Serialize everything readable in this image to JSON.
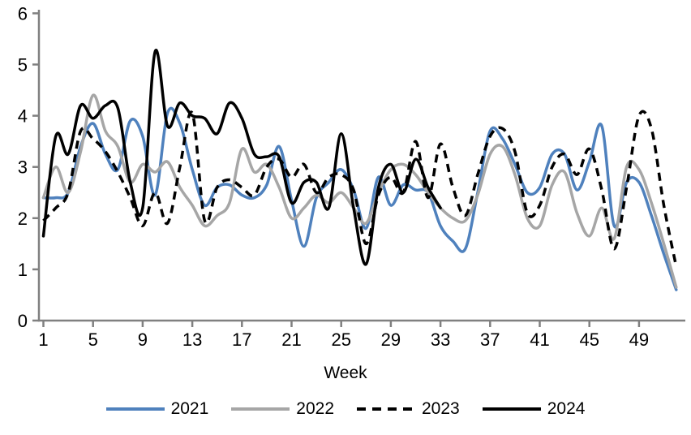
{
  "chart_data": {
    "type": "line",
    "title": "",
    "xlabel": "Week",
    "ylabel": "",
    "ylim": [
      0,
      6
    ],
    "grid": false,
    "legend_position": "bottom",
    "axis_color": "#808080",
    "text_color": "#000000",
    "background_color": "#FFFFFF",
    "categories": [
      1,
      2,
      3,
      4,
      5,
      6,
      7,
      8,
      9,
      10,
      11,
      12,
      13,
      14,
      15,
      16,
      17,
      18,
      19,
      20,
      21,
      22,
      23,
      24,
      25,
      26,
      27,
      28,
      29,
      30,
      31,
      32,
      33,
      34,
      35,
      36,
      37,
      38,
      39,
      40,
      41,
      42,
      43,
      44,
      45,
      46,
      47,
      48,
      49,
      50,
      51,
      52
    ],
    "x_tick_weeks": [
      1,
      5,
      9,
      13,
      17,
      21,
      25,
      29,
      33,
      37,
      41,
      45,
      49
    ],
    "x_tick_labels": [
      "1",
      "5",
      "9",
      "13",
      "17",
      "21",
      "25",
      "29",
      "33",
      "37",
      "41",
      "45",
      "49"
    ],
    "y_ticks": [
      0,
      1,
      2,
      3,
      4,
      5,
      6
    ],
    "y_tick_labels": [
      "0",
      "1",
      "2",
      "3",
      "4",
      "5",
      "6"
    ],
    "series": [
      {
        "name": "2021",
        "color": "#4F81BD",
        "style": "solid",
        "values": [
          2.4,
          2.4,
          2.5,
          3.4,
          3.85,
          3.25,
          2.95,
          3.9,
          3.6,
          2.45,
          4.05,
          3.85,
          2.95,
          2.25,
          2.6,
          2.65,
          2.45,
          2.4,
          2.65,
          3.4,
          2.35,
          1.45,
          2.4,
          2.7,
          2.95,
          2.55,
          1.8,
          2.8,
          2.25,
          2.65,
          2.55,
          2.5,
          1.85,
          1.55,
          1.4,
          2.5,
          3.7,
          3.55,
          3.05,
          2.5,
          2.6,
          3.25,
          3.25,
          2.55,
          3.1,
          3.8,
          1.85,
          2.7,
          2.7,
          2.05,
          1.3,
          0.6
        ]
      },
      {
        "name": "2022",
        "color": "#A6A6A6",
        "style": "solid",
        "values": [
          2.4,
          3.0,
          2.5,
          3.3,
          4.4,
          3.7,
          3.4,
          2.7,
          3.05,
          2.9,
          3.1,
          2.6,
          2.25,
          1.85,
          2.05,
          2.3,
          3.35,
          2.9,
          3.05,
          2.6,
          2.0,
          2.2,
          2.45,
          2.3,
          2.5,
          2.2,
          1.9,
          2.5,
          2.95,
          3.05,
          2.85,
          2.5,
          2.2,
          2.0,
          1.95,
          2.45,
          3.25,
          3.4,
          2.85,
          2.0,
          1.85,
          2.65,
          2.9,
          2.1,
          1.65,
          2.2,
          1.6,
          3.0,
          2.95,
          2.3,
          1.5,
          0.65
        ]
      },
      {
        "name": "2023",
        "color": "#000000",
        "style": "dashed",
        "values": [
          1.95,
          2.2,
          2.5,
          3.7,
          3.55,
          3.3,
          2.9,
          2.4,
          1.85,
          2.5,
          1.9,
          3.0,
          4.05,
          1.95,
          2.6,
          2.75,
          2.6,
          2.45,
          3.0,
          3.15,
          2.8,
          3.05,
          2.5,
          2.8,
          2.85,
          2.55,
          1.5,
          2.45,
          2.8,
          2.5,
          3.5,
          2.4,
          3.45,
          2.6,
          2.05,
          2.85,
          3.6,
          3.75,
          3.3,
          2.1,
          2.25,
          3.0,
          3.25,
          2.85,
          3.35,
          2.55,
          1.4,
          2.6,
          4.0,
          3.75,
          2.25,
          1.05
        ]
      },
      {
        "name": "2024",
        "color": "#000000",
        "style": "solid",
        "values": [
          1.65,
          3.6,
          3.25,
          4.2,
          3.95,
          4.2,
          4.15,
          2.7,
          2.2,
          5.25,
          3.8,
          4.25,
          4.0,
          3.95,
          3.65,
          4.25,
          3.95,
          3.25,
          3.2,
          3.2,
          2.3,
          2.7,
          2.7,
          2.2,
          3.65,
          2.2,
          1.1,
          2.6,
          3.05,
          2.5,
          3.15,
          2.6,
          2.2,
          null,
          null,
          null,
          null,
          null,
          null,
          null,
          null,
          null,
          null,
          null,
          null,
          null,
          null,
          null,
          null,
          null,
          null,
          null
        ]
      }
    ]
  }
}
